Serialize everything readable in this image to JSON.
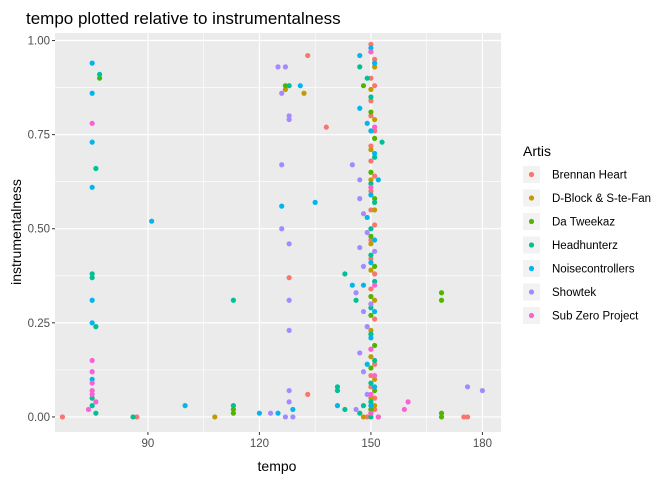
{
  "chart_data": {
    "type": "scatter",
    "title": "tempo plotted relative to instrumentalness",
    "xlabel": "tempo",
    "ylabel": "instrumentalness",
    "xlim": [
      65,
      185
    ],
    "ylim": [
      -0.04,
      1.02
    ],
    "x_ticks": [
      90,
      120,
      150,
      180
    ],
    "x_tick_labels": [
      "90",
      "120",
      "150",
      "180"
    ],
    "y_ticks": [
      0,
      0.25,
      0.5,
      0.75,
      1
    ],
    "y_tick_labels": [
      "0.00",
      "0.25",
      "0.50",
      "0.75",
      "1.00"
    ],
    "grid": true,
    "legend_position": "right",
    "legend_title": "Artis",
    "series": [
      {
        "name": "Brennan Heart",
        "color": "#F8766D",
        "points": [
          [
            67,
            0
          ],
          [
            87,
            0
          ],
          [
            175,
            0
          ],
          [
            176,
            0
          ],
          [
            133,
            0.96
          ],
          [
            138,
            0.77
          ],
          [
            128,
            0.37
          ],
          [
            133,
            0.06
          ],
          [
            150,
            0.99
          ],
          [
            151,
            0.95
          ],
          [
            150,
            0.9
          ],
          [
            151,
            0.88
          ],
          [
            150,
            0.84
          ],
          [
            150,
            0.8
          ],
          [
            151,
            0.76
          ],
          [
            150,
            0.72
          ],
          [
            150,
            0.68
          ],
          [
            151,
            0.64
          ],
          [
            150,
            0.6
          ],
          [
            150,
            0.55
          ],
          [
            151,
            0.51
          ],
          [
            150,
            0.47
          ],
          [
            150,
            0.42
          ],
          [
            151,
            0.38
          ],
          [
            150,
            0.34
          ],
          [
            150,
            0.3
          ],
          [
            151,
            0.26
          ],
          [
            150,
            0.22
          ],
          [
            150,
            0.18
          ],
          [
            151,
            0.14
          ],
          [
            150,
            0.11
          ],
          [
            150,
            0.08
          ],
          [
            151,
            0.05
          ],
          [
            150,
            0.02
          ],
          [
            149,
            0
          ],
          [
            150,
            0.01
          ],
          [
            151,
            0.02
          ]
        ]
      },
      {
        "name": "D-Block & S-te-Fan",
        "color": "#C49A00",
        "points": [
          [
            108,
            0
          ],
          [
            127,
            0.87
          ],
          [
            132,
            0.86
          ],
          [
            150,
            0.97
          ],
          [
            151,
            0.93
          ],
          [
            150,
            0.87
          ],
          [
            151,
            0.79
          ],
          [
            150,
            0.71
          ],
          [
            150,
            0.63
          ],
          [
            151,
            0.55
          ],
          [
            150,
            0.46
          ],
          [
            150,
            0.39
          ],
          [
            151,
            0.31
          ],
          [
            150,
            0.23
          ],
          [
            150,
            0.16
          ],
          [
            151,
            0.1
          ],
          [
            150,
            0.05
          ],
          [
            150,
            0.01
          ],
          [
            148,
            0
          ],
          [
            152,
            0
          ],
          [
            151,
            0.03
          ]
        ]
      },
      {
        "name": "Da Tweekaz",
        "color": "#53B400",
        "points": [
          [
            77,
            0.9
          ],
          [
            127,
            0.88
          ],
          [
            148,
            0.88
          ],
          [
            150,
            0.81
          ],
          [
            151,
            0.74
          ],
          [
            150,
            0.65
          ],
          [
            151,
            0.58
          ],
          [
            150,
            0.48
          ],
          [
            151,
            0.4
          ],
          [
            150,
            0.32
          ],
          [
            150,
            0.27
          ],
          [
            151,
            0.19
          ],
          [
            150,
            0.13
          ],
          [
            151,
            0.07
          ],
          [
            150,
            0.02
          ],
          [
            169,
            0.33
          ],
          [
            169,
            0.31
          ],
          [
            169,
            0.01
          ],
          [
            169,
            0
          ],
          [
            113,
            0.02
          ],
          [
            113,
            0.01
          ]
        ]
      },
      {
        "name": "Headhunterz",
        "color": "#00C094",
        "points": [
          [
            77,
            0.91
          ],
          [
            76,
            0.66
          ],
          [
            75,
            0.38
          ],
          [
            75,
            0.37
          ],
          [
            76,
            0.24
          ],
          [
            75,
            0.05
          ],
          [
            75,
            0.03
          ],
          [
            76,
            0.01
          ],
          [
            86,
            0
          ],
          [
            113,
            0.31
          ],
          [
            113,
            0.03
          ],
          [
            128,
            0.88
          ],
          [
            147,
            0.93
          ],
          [
            149,
            0.9
          ],
          [
            150,
            0.85
          ],
          [
            153,
            0.73
          ],
          [
            151,
            0.69
          ],
          [
            150,
            0.62
          ],
          [
            151,
            0.57
          ],
          [
            150,
            0.5
          ],
          [
            150,
            0.43
          ],
          [
            151,
            0.36
          ],
          [
            150,
            0.29
          ],
          [
            150,
            0.22
          ],
          [
            151,
            0.15
          ],
          [
            150,
            0.09
          ],
          [
            150,
            0.04
          ],
          [
            143,
            0.38
          ],
          [
            146,
            0.31
          ],
          [
            141,
            0.08
          ],
          [
            141,
            0.07
          ],
          [
            143,
            0.02
          ],
          [
            147,
            0.01
          ],
          [
            148,
            0.03
          ],
          [
            150,
            0
          ]
        ]
      },
      {
        "name": "Noisecontrollers",
        "color": "#00B6EB",
        "points": [
          [
            75,
            0.94
          ],
          [
            75,
            0.86
          ],
          [
            75,
            0.73
          ],
          [
            75,
            0.61
          ],
          [
            75,
            0.31
          ],
          [
            75,
            0.25
          ],
          [
            75,
            0.1
          ],
          [
            91,
            0.52
          ],
          [
            100,
            0.03
          ],
          [
            126,
            0.56
          ],
          [
            131,
            0.88
          ],
          [
            135,
            0.57
          ],
          [
            147,
            0.96
          ],
          [
            150,
            0.98
          ],
          [
            151,
            0.94
          ],
          [
            147,
            0.82
          ],
          [
            149,
            0.78
          ],
          [
            150,
            0.76
          ],
          [
            151,
            0.7
          ],
          [
            152,
            0.63
          ],
          [
            150,
            0.59
          ],
          [
            149,
            0.53
          ],
          [
            151,
            0.47
          ],
          [
            150,
            0.41
          ],
          [
            148,
            0.35
          ],
          [
            151,
            0.28
          ],
          [
            150,
            0.21
          ],
          [
            149,
            0.14
          ],
          [
            151,
            0.08
          ],
          [
            150,
            0.03
          ],
          [
            120,
            0.01
          ],
          [
            145,
            0.35
          ],
          [
            141,
            0.03
          ],
          [
            129,
            0.02
          ],
          [
            125,
            0.01
          ]
        ]
      },
      {
        "name": "Showtek",
        "color": "#A58AFF",
        "points": [
          [
            125,
            0.93
          ],
          [
            127,
            0.93
          ],
          [
            126,
            0.86
          ],
          [
            128,
            0.8
          ],
          [
            128,
            0.79
          ],
          [
            126,
            0.67
          ],
          [
            126,
            0.5
          ],
          [
            128,
            0.46
          ],
          [
            128,
            0.31
          ],
          [
            128,
            0.23
          ],
          [
            128,
            0.07
          ],
          [
            128,
            0.04
          ],
          [
            123,
            0.01
          ],
          [
            127,
            0
          ],
          [
            129,
            0
          ],
          [
            145,
            0.67
          ],
          [
            147,
            0.63
          ],
          [
            147,
            0.58
          ],
          [
            148,
            0.54
          ],
          [
            149,
            0.49
          ],
          [
            147,
            0.45
          ],
          [
            148,
            0.4
          ],
          [
            146,
            0.33
          ],
          [
            148,
            0.28
          ],
          [
            149,
            0.24
          ],
          [
            147,
            0.17
          ],
          [
            148,
            0.12
          ],
          [
            149,
            0.06
          ],
          [
            146,
            0.02
          ],
          [
            176,
            0.08
          ],
          [
            180,
            0.07
          ],
          [
            150,
            0.3
          ],
          [
            151,
            0.44
          ]
        ]
      },
      {
        "name": "Sub Zero Project",
        "color": "#FB61D7",
        "points": [
          [
            75,
            0.78
          ],
          [
            75,
            0.15
          ],
          [
            75,
            0.12
          ],
          [
            75,
            0.09
          ],
          [
            75,
            0.07
          ],
          [
            75,
            0.06
          ],
          [
            76,
            0.04
          ],
          [
            74,
            0.02
          ],
          [
            160,
            0.04
          ],
          [
            159,
            0.02
          ],
          [
            150,
            0.97
          ],
          [
            151,
            0.77
          ],
          [
            150,
            0.61
          ],
          [
            151,
            0.35
          ],
          [
            150,
            0.18
          ],
          [
            151,
            0.11
          ],
          [
            150,
            0.06
          ],
          [
            150,
            0.01
          ],
          [
            152,
            0
          ]
        ]
      }
    ]
  }
}
